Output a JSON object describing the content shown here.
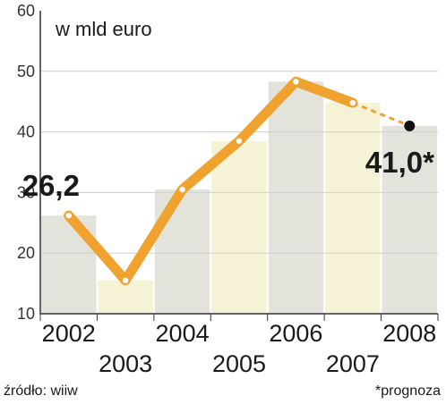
{
  "chart_data": {
    "type": "bar+line",
    "unit_label": "w mld euro",
    "categories": [
      "2002",
      "2003",
      "2004",
      "2005",
      "2006",
      "2007",
      "2008"
    ],
    "series": [
      {
        "values": [
          26.2,
          15.5,
          30.5,
          38.5,
          48.3,
          44.8,
          41.0
        ]
      }
    ],
    "forecast_from_index": 5,
    "ylim": [
      10,
      60
    ],
    "yticks": [
      "60",
      "50",
      "40",
      "30",
      "20",
      "10"
    ],
    "grid": true,
    "colors": {
      "line": "#f0a22e",
      "bar_gray": "#e3e3dc",
      "bar_cream": "#f6f2d6",
      "grid": "#cfcfcf",
      "axis": "#333333"
    },
    "data_labels": [
      {
        "index": 0,
        "text": "26,2"
      },
      {
        "index": 6,
        "text": "41,0*"
      }
    ]
  },
  "footer": {
    "source": "źródło: wiiw",
    "note": "*prognoza"
  }
}
